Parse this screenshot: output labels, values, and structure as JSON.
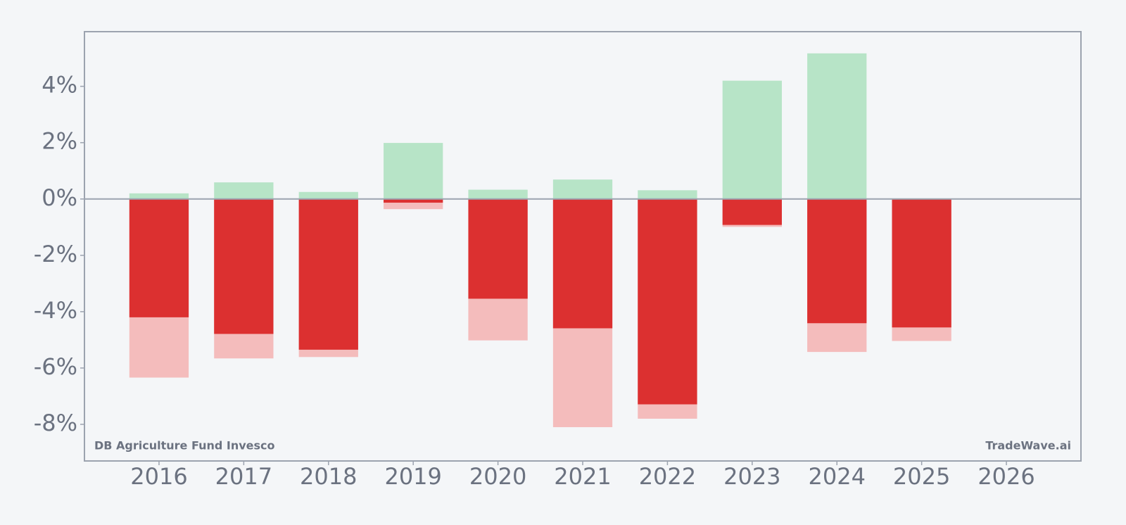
{
  "chart_data": {
    "type": "bar",
    "x": [
      2016,
      2017,
      2018,
      2019,
      2020,
      2021,
      2022,
      2023,
      2024,
      2025
    ],
    "series": [
      {
        "color": "#b7e4c7",
        "values": [
          0.2,
          0.59,
          0.25,
          1.99,
          0.33,
          0.69,
          0.31,
          4.2,
          5.17,
          null
        ]
      },
      {
        "color": "#f4bcbc",
        "values": [
          -6.34,
          -5.66,
          -5.61,
          -0.36,
          -5.02,
          -8.1,
          -7.8,
          -0.99,
          -5.43,
          -5.04
        ]
      },
      {
        "color": "#dc3030",
        "values": [
          -4.2,
          -4.79,
          -5.35,
          -0.13,
          -3.54,
          -4.59,
          -7.29,
          -0.92,
          -4.41,
          -4.56
        ]
      }
    ],
    "xlim": [
      2015.12,
      2026.88
    ],
    "xticks": [
      2016,
      2017,
      2018,
      2019,
      2020,
      2021,
      2022,
      2023,
      2024,
      2025,
      2026
    ],
    "ylim": [
      -9.3,
      5.94
    ],
    "yticks": [
      {
        "value": -8,
        "label": "-8%"
      },
      {
        "value": -6,
        "label": "-6%"
      },
      {
        "value": -4,
        "label": "-4%"
      },
      {
        "value": -2,
        "label": "-2%"
      },
      {
        "value": 0,
        "label": "0%"
      },
      {
        "value": 2,
        "label": "2%"
      },
      {
        "value": 4,
        "label": "4%"
      }
    ],
    "annotations": [
      "DB Agriculture Fund Invesco",
      "TradeWave.ai"
    ]
  }
}
